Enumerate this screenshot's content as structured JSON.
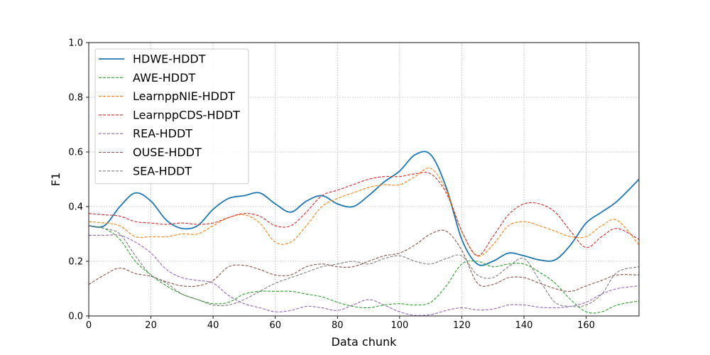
{
  "chart_data": {
    "type": "line",
    "title": "",
    "xlabel": "Data chunk",
    "ylabel": "F1",
    "xlim": [
      0,
      177
    ],
    "ylim": [
      0.0,
      1.0
    ],
    "x_ticks": [
      0,
      20,
      40,
      60,
      80,
      100,
      120,
      140,
      160
    ],
    "y_ticks": [
      0.0,
      0.2,
      0.4,
      0.6,
      0.8,
      1.0
    ],
    "x_tick_labels": [
      "0",
      "20",
      "40",
      "60",
      "80",
      "100",
      "120",
      "140",
      "160"
    ],
    "y_tick_labels": [
      "0.0",
      "0.2",
      "0.4",
      "0.6",
      "0.8",
      "1.0"
    ],
    "grid": true,
    "legend_position": "top-left",
    "x": [
      0,
      5,
      10,
      15,
      20,
      25,
      30,
      35,
      40,
      45,
      50,
      55,
      60,
      65,
      70,
      75,
      80,
      85,
      90,
      95,
      100,
      105,
      110,
      115,
      120,
      125,
      130,
      135,
      140,
      145,
      150,
      155,
      160,
      165,
      170,
      177
    ],
    "series": [
      {
        "name": "HDWE-HDDT",
        "color": "#1f77b4",
        "style": "solid",
        "values": [
          0.33,
          0.33,
          0.4,
          0.45,
          0.42,
          0.35,
          0.32,
          0.33,
          0.39,
          0.43,
          0.44,
          0.45,
          0.41,
          0.38,
          0.42,
          0.44,
          0.41,
          0.4,
          0.44,
          0.49,
          0.53,
          0.59,
          0.59,
          0.47,
          0.28,
          0.19,
          0.2,
          0.23,
          0.22,
          0.205,
          0.205,
          0.26,
          0.34,
          0.38,
          0.42,
          0.5
        ]
      },
      {
        "name": "AWE-HDDT",
        "color": "#2ca02c",
        "style": "dashed",
        "values": [
          0.33,
          0.32,
          0.28,
          0.2,
          0.15,
          0.11,
          0.08,
          0.06,
          0.045,
          0.05,
          0.08,
          0.09,
          0.09,
          0.09,
          0.08,
          0.07,
          0.05,
          0.035,
          0.03,
          0.04,
          0.045,
          0.04,
          0.05,
          0.11,
          0.19,
          0.2,
          0.18,
          0.19,
          0.19,
          0.16,
          0.12,
          0.06,
          0.015,
          0.015,
          0.04,
          0.055
        ]
      },
      {
        "name": "LearnppNIE-HDDT",
        "color": "#ff7f0e",
        "style": "dashed",
        "values": [
          0.345,
          0.34,
          0.33,
          0.29,
          0.29,
          0.29,
          0.3,
          0.3,
          0.33,
          0.36,
          0.37,
          0.34,
          0.27,
          0.27,
          0.33,
          0.4,
          0.43,
          0.45,
          0.47,
          0.48,
          0.48,
          0.51,
          0.54,
          0.46,
          0.31,
          0.22,
          0.26,
          0.33,
          0.345,
          0.33,
          0.31,
          0.29,
          0.29,
          0.33,
          0.35,
          0.26
        ]
      },
      {
        "name": "LearnppCDS-HDDT",
        "color": "#d62728",
        "style": "dashed",
        "values": [
          0.375,
          0.37,
          0.365,
          0.345,
          0.34,
          0.335,
          0.34,
          0.335,
          0.34,
          0.36,
          0.375,
          0.365,
          0.33,
          0.33,
          0.38,
          0.44,
          0.46,
          0.48,
          0.5,
          0.51,
          0.51,
          0.52,
          0.52,
          0.45,
          0.31,
          0.22,
          0.29,
          0.37,
          0.41,
          0.41,
          0.38,
          0.31,
          0.25,
          0.29,
          0.32,
          0.28
        ]
      },
      {
        "name": "REA-HDDT",
        "color": "#9467bd",
        "style": "dashed",
        "values": [
          0.295,
          0.295,
          0.295,
          0.27,
          0.23,
          0.17,
          0.14,
          0.13,
          0.12,
          0.075,
          0.045,
          0.03,
          0.015,
          0.02,
          0.035,
          0.03,
          0.02,
          0.04,
          0.06,
          0.04,
          0.015,
          0.002,
          0.005,
          0.02,
          0.03,
          0.022,
          0.025,
          0.04,
          0.04,
          0.032,
          0.03,
          0.035,
          0.05,
          0.08,
          0.1,
          0.11
        ]
      },
      {
        "name": "OUSE-HDDT",
        "color": "#8c564b",
        "style": "dashed",
        "values": [
          0.115,
          0.15,
          0.175,
          0.155,
          0.145,
          0.125,
          0.11,
          0.11,
          0.13,
          0.18,
          0.185,
          0.17,
          0.15,
          0.15,
          0.18,
          0.19,
          0.18,
          0.18,
          0.2,
          0.22,
          0.23,
          0.26,
          0.3,
          0.31,
          0.24,
          0.12,
          0.115,
          0.14,
          0.14,
          0.12,
          0.1,
          0.09,
          0.11,
          0.13,
          0.15,
          0.15
        ]
      },
      {
        "name": "SEA-HDDT",
        "color": "#7f7f7f",
        "style": "dashed",
        "values": [
          0.33,
          0.32,
          0.3,
          0.22,
          0.15,
          0.12,
          0.08,
          0.06,
          0.04,
          0.04,
          0.06,
          0.09,
          0.12,
          0.14,
          0.16,
          0.18,
          0.19,
          0.2,
          0.19,
          0.21,
          0.22,
          0.2,
          0.19,
          0.21,
          0.22,
          0.15,
          0.14,
          0.18,
          0.21,
          0.13,
          0.05,
          0.035,
          0.04,
          0.08,
          0.16,
          0.18
        ]
      }
    ]
  }
}
